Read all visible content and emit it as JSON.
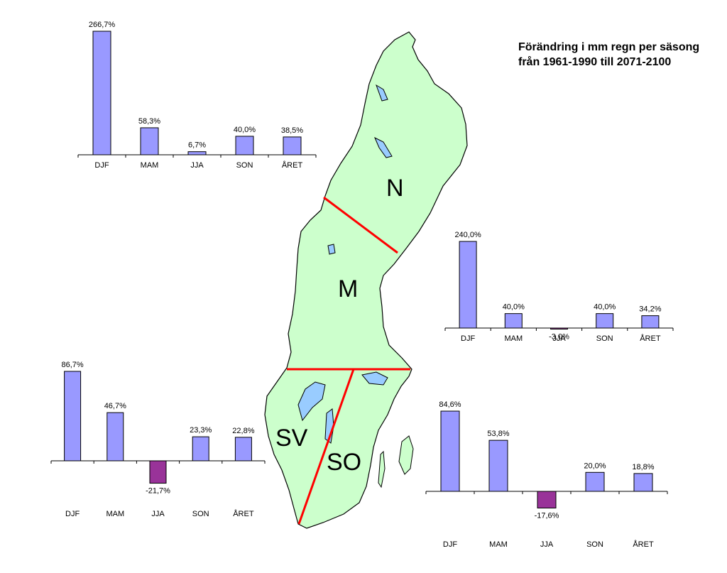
{
  "title": "Förändring i mm regn per säsong från 1961-1990 till 2071-2100",
  "colors": {
    "positive_bar": "#9999FF",
    "negative_bar": "#993399",
    "land": "#CCFFCC",
    "lake": "#99CCFF",
    "border": "#FF0000"
  },
  "map": {
    "regions": [
      "N",
      "M",
      "SV",
      "SO"
    ]
  },
  "chart_data": [
    {
      "type": "bar",
      "region": "N",
      "categories": [
        "DJF",
        "MAM",
        "JJA",
        "SON",
        "ÅRET"
      ],
      "values": [
        266.7,
        58.3,
        6.7,
        40.0,
        38.5
      ],
      "value_labels": [
        "266,7%",
        "58,3%",
        "6,7%",
        "40,0%",
        "38,5%"
      ],
      "ylim": [
        0,
        270
      ]
    },
    {
      "type": "bar",
      "region": "M",
      "categories": [
        "DJF",
        "MAM",
        "JJA",
        "SON",
        "ÅRET"
      ],
      "values": [
        240.0,
        40.0,
        -3.0,
        40.0,
        34.2
      ],
      "value_labels": [
        "240,0%",
        "40,0%",
        "-3,0%",
        "40,0%",
        "34,2%"
      ],
      "ylim": [
        0,
        270
      ]
    },
    {
      "type": "bar",
      "region": "SV",
      "categories": [
        "DJF",
        "MAM",
        "JJA",
        "SON",
        "ÅRET"
      ],
      "values": [
        86.7,
        46.7,
        -21.7,
        23.3,
        22.8
      ],
      "value_labels": [
        "86,7%",
        "46,7%",
        "-21,7%",
        "23,3%",
        "22,8%"
      ],
      "ylim": [
        -25,
        95
      ]
    },
    {
      "type": "bar",
      "region": "SO",
      "categories": [
        "DJF",
        "MAM",
        "JJA",
        "SON",
        "ÅRET"
      ],
      "values": [
        84.6,
        53.8,
        -17.6,
        20.0,
        18.8
      ],
      "value_labels": [
        "84,6%",
        "53,8%",
        "-17,6%",
        "20,0%",
        "18,8%"
      ],
      "ylim": [
        -25,
        95
      ]
    }
  ]
}
